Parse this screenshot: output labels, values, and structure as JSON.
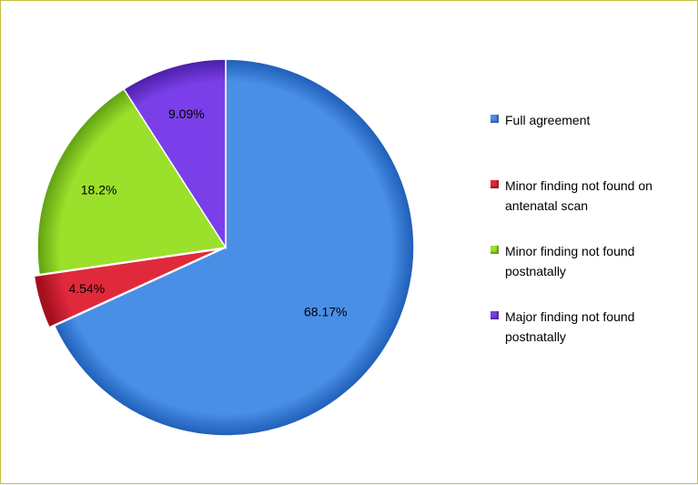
{
  "chart_data": {
    "type": "pie",
    "title": "",
    "slices": [
      {
        "label": "Full agreement",
        "value": 68.17,
        "value_label": "68.17%",
        "color": "#4a8fe6",
        "dark": "#1f5eb8"
      },
      {
        "label": "Minor finding not found on antenatal scan",
        "value": 4.54,
        "value_label": "4.54%",
        "color": "#e02a3c",
        "dark": "#a3101e"
      },
      {
        "label": "Minor finding not found postnatally",
        "value": 18.2,
        "value_label": "18.2%",
        "color": "#9be02a",
        "dark": "#5fa012"
      },
      {
        "label": "Major finding not found postnatally",
        "value": 9.09,
        "value_label": "9.09%",
        "color": "#7a3fe8",
        "dark": "#4a1fa8"
      }
    ],
    "legend_position": "right"
  },
  "legend": {
    "items": [
      {
        "label": "Full agreement",
        "color": "#4a8fe6"
      },
      {
        "label": "Minor finding not found on antenatal scan",
        "color": "#e02a3c"
      },
      {
        "label": "Minor finding not found postnatally",
        "color": "#9be02a"
      },
      {
        "label": "Major finding not found postnatally",
        "color": "#7a3fe8"
      }
    ]
  }
}
